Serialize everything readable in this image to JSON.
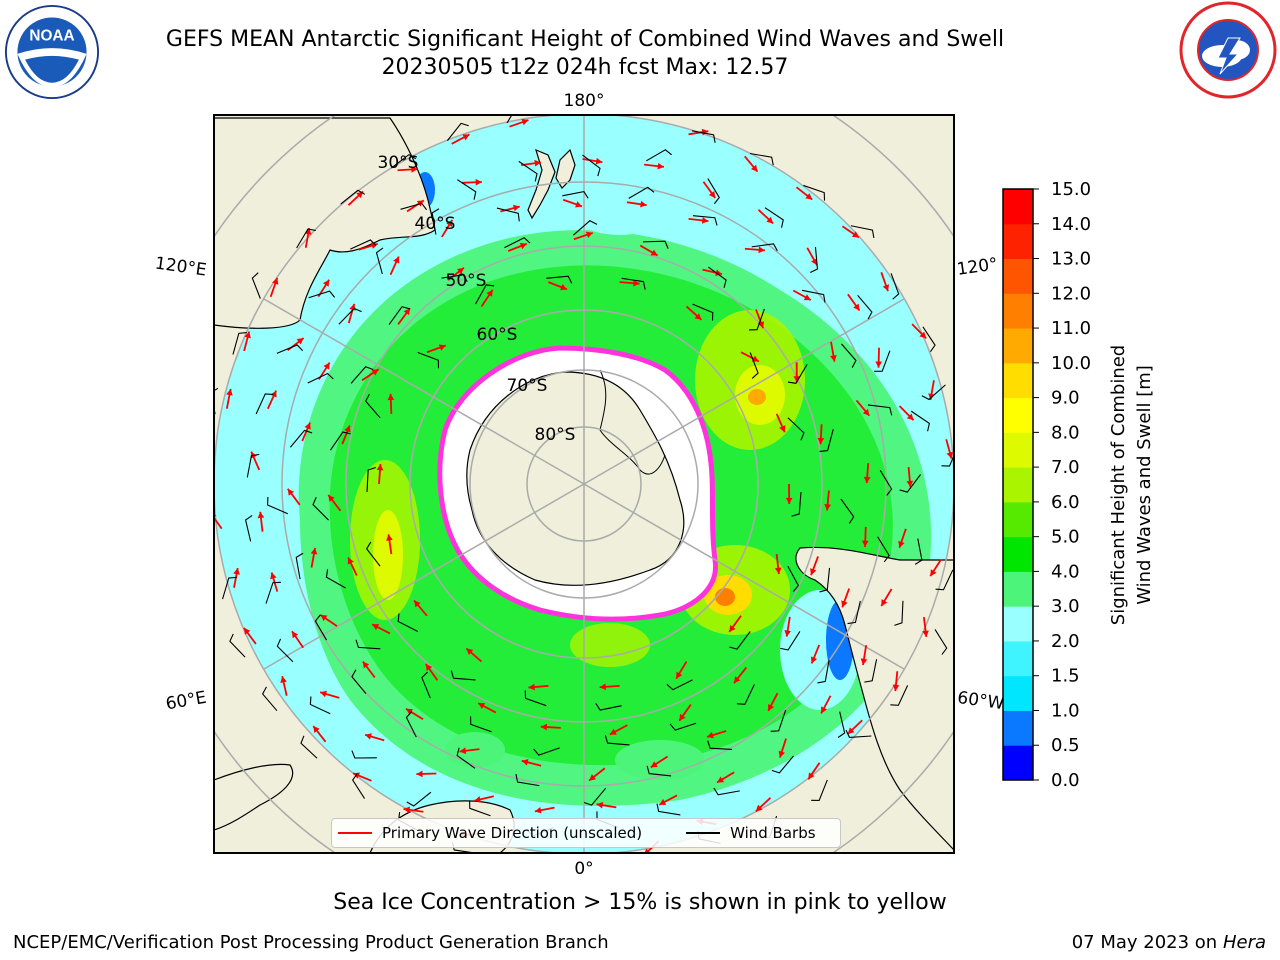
{
  "title": {
    "line1": "GEFS MEAN Antarctic Significant Height of Combined Wind Waves and Swell",
    "line2": "20230505 t12z 024h fcst   Max: 12.57"
  },
  "lon_labels": {
    "top": "180°",
    "bottom": "0°",
    "left_upper": "120°E",
    "left_lower": "60°E",
    "right_upper": "120°",
    "right_lower": "60°W"
  },
  "lat_labels": [
    "30°S",
    "40°S",
    "50°S",
    "60°S",
    "70°S",
    "80°S"
  ],
  "legend": {
    "wave": "Primary Wave Direction (unscaled)",
    "wind": "Wind Barbs"
  },
  "colorbar": {
    "label_line1": "Significant Height of Combined",
    "label_line2": "Wind Waves and Swell [m]",
    "ticks": [
      "0.0",
      "0.5",
      "1.0",
      "1.5",
      "2.0",
      "3.0",
      "4.0",
      "5.0",
      "6.0",
      "7.0",
      "8.0",
      "9.0",
      "10.0",
      "11.0",
      "12.0",
      "13.0",
      "14.0",
      "15.0"
    ],
    "colors": [
      "#0000ff",
      "#0a78ff",
      "#00e6ff",
      "#40f4ff",
      "#99ffff",
      "#4cf57a",
      "#00e600",
      "#55ea00",
      "#aaf400",
      "#ddfa00",
      "#ffff00",
      "#ffdd00",
      "#ffaa00",
      "#ff8000",
      "#ff5500",
      "#ff2200",
      "#ff0000"
    ]
  },
  "footer": {
    "note": "Sea Ice Concentration > 15% is shown in pink to yellow",
    "left": "NCEP/EMC/Verification Post Processing Product Generation Branch",
    "right_date": "07 May 2023 on",
    "right_host": "Hera"
  },
  "colors": {
    "land": "#efefdc",
    "ocean_low": "#99ffff",
    "ice_edge": "#ff33dd",
    "wave_arrow": "#ff0000",
    "barb": "#000000"
  }
}
